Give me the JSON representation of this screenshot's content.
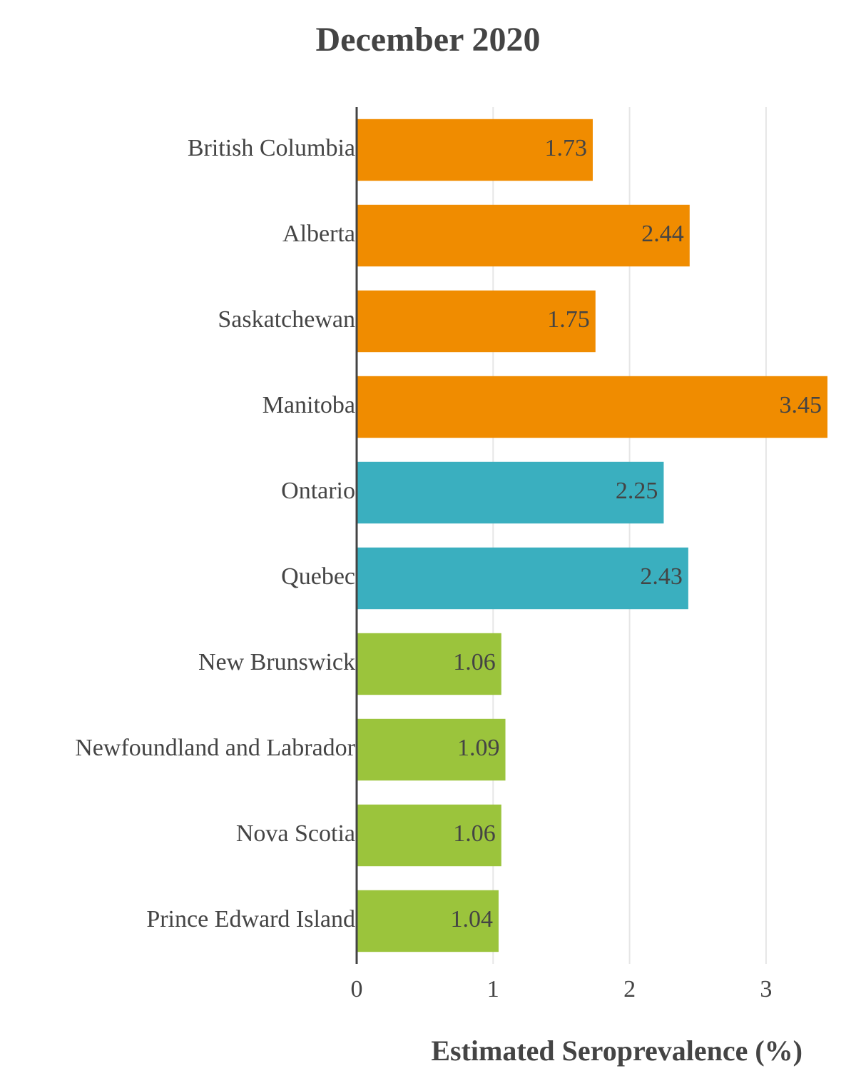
{
  "chart_data": {
    "type": "bar",
    "orientation": "horizontal",
    "title": "December 2020",
    "xlabel": "Estimated Seroprevalence (%)",
    "ylabel": "",
    "xlim": [
      0,
      3.45
    ],
    "x_ticks": [
      0,
      1,
      2,
      3
    ],
    "grid": "vertical",
    "data_labels": true,
    "categories": [
      "British Columbia",
      "Alberta",
      "Saskatchewan",
      "Manitoba",
      "Ontario",
      "Quebec",
      "New Brunswick",
      "Newfoundland and Labrador",
      "Nova Scotia",
      "Prince Edward Island"
    ],
    "values": [
      1.73,
      2.44,
      1.75,
      3.45,
      2.25,
      2.43,
      1.06,
      1.09,
      1.06,
      1.04
    ],
    "value_labels": [
      "1.73",
      "2.44",
      "1.75",
      "3.45",
      "2.25",
      "2.43",
      "1.06",
      "1.09",
      "1.06",
      "1.04"
    ],
    "bar_colors": [
      "#f08c00",
      "#f08c00",
      "#f08c00",
      "#f08c00",
      "#3aafbf",
      "#3aafbf",
      "#9bc43c",
      "#9bc43c",
      "#9bc43c",
      "#9bc43c"
    ],
    "colors": {
      "text": "#444444",
      "grid": "#e6e6e6",
      "axis": "#444444"
    }
  }
}
